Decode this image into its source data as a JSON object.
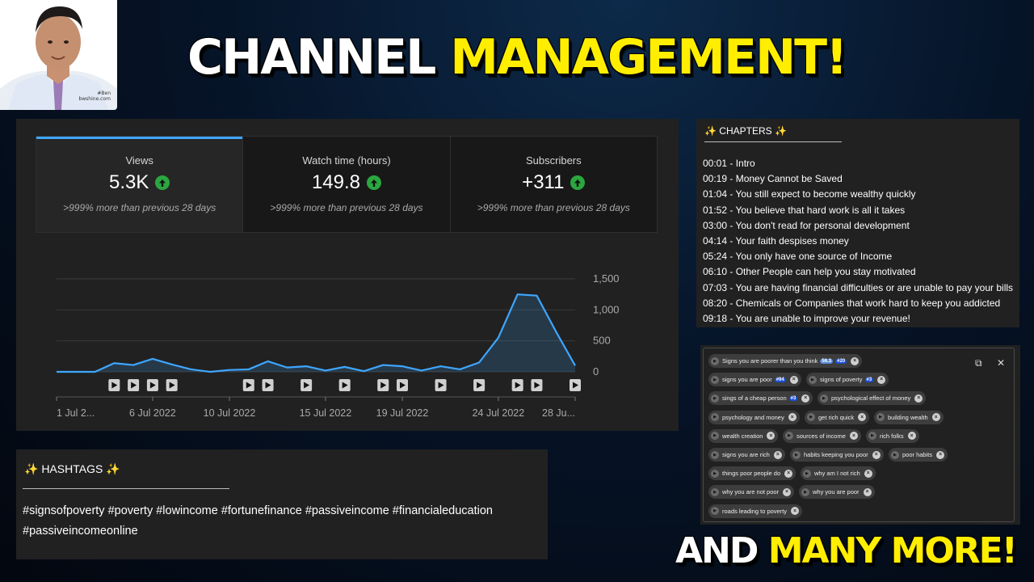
{
  "headline": {
    "part1": "CHANNEL",
    "part2": "MANAGEMENT!"
  },
  "footer": {
    "part1": "AND",
    "part2": "MANY MORE!"
  },
  "avatar": {
    "signature_line1": "#Ben",
    "signature_line2": "bwshine.com"
  },
  "analytics": {
    "metrics": [
      {
        "label": "Views",
        "value": "5.3K",
        "comparison": ">999% more than previous 28 days"
      },
      {
        "label": "Watch time (hours)",
        "value": "149.8",
        "comparison": ">999% more than previous 28 days"
      },
      {
        "label": "Subscribers",
        "value": "+311",
        "comparison": ">999% more than previous 28 days"
      }
    ],
    "colors": {
      "accent": "#3ea6ff",
      "positive": "#2ba640"
    }
  },
  "chart_data": {
    "type": "area",
    "x": [
      "1 Jul",
      "2 Jul",
      "3 Jul",
      "4 Jul",
      "5 Jul",
      "6 Jul",
      "7 Jul",
      "8 Jul",
      "9 Jul",
      "10 Jul",
      "11 Jul",
      "12 Jul",
      "13 Jul",
      "14 Jul",
      "15 Jul",
      "16 Jul",
      "17 Jul",
      "18 Jul",
      "19 Jul",
      "20 Jul",
      "21 Jul",
      "22 Jul",
      "23 Jul",
      "24 Jul",
      "25 Jul",
      "26 Jul",
      "27 Jul",
      "28 Jul"
    ],
    "values": [
      0,
      0,
      0,
      140,
      110,
      210,
      120,
      40,
      0,
      30,
      40,
      170,
      70,
      90,
      20,
      80,
      10,
      110,
      90,
      20,
      90,
      40,
      150,
      550,
      1250,
      1230,
      650,
      100
    ],
    "tick_labels": [
      "1 Jul 2...",
      "6 Jul 2022",
      "10 Jul 2022",
      "15 Jul 2022",
      "19 Jul 2022",
      "24 Jul 2022",
      "28 Ju..."
    ],
    "tick_indices": [
      0,
      5,
      9,
      14,
      18,
      23,
      27
    ],
    "y_ticks": [
      "0",
      "500",
      "1,000",
      "1,500"
    ],
    "ylim": [
      0,
      1500
    ],
    "grid": true,
    "video_markers": [
      3,
      4,
      5,
      6,
      10,
      11,
      13,
      15,
      17,
      18,
      20,
      22,
      24,
      25,
      27
    ],
    "color": "#3ea6ff"
  },
  "chapters": {
    "title": "✨ CHAPTERS ✨",
    "items": [
      "00:01 - Intro",
      "00:19 - Money Cannot be Saved",
      "01:04 - You still expect to become wealthy quickly",
      "01:52 - You believe that hard work is all it takes",
      "03:00 - You don't read for personal development",
      "04:14 - Your faith despises money",
      "05:24 - You only have one source of Income",
      "06:10 - Other People can help you stay motivated",
      "07:03 - You are having financial difficulties or are unable to pay your bills",
      "08:20 - Chemicals or Companies that work hard to keep you addicted",
      "09:18 - You are unable to improve your revenue!"
    ]
  },
  "tags": {
    "copy_icon": "copy-icon",
    "close_icon": "close-icon",
    "copy_glyph": "⧉",
    "close_glyph": "✕",
    "rows": [
      [
        {
          "text": "Signs you are poorer than you think",
          "badges": [
            "56.3",
            "#20"
          ]
        }
      ],
      [
        {
          "text": "signs you are poor",
          "badges": [
            "#94"
          ]
        },
        {
          "text": "signs of poverty",
          "badges": [
            "#3"
          ]
        }
      ],
      [
        {
          "text": "sings of a cheap person",
          "badges": [
            "#3"
          ]
        },
        {
          "text": "psychological effect of money",
          "badges": []
        }
      ],
      [
        {
          "text": "psychology and money",
          "badges": []
        },
        {
          "text": "get rich quick",
          "badges": []
        },
        {
          "text": "building wealth",
          "badges": []
        }
      ],
      [
        {
          "text": "wealth creation",
          "badges": []
        },
        {
          "text": "sources of income",
          "badges": []
        },
        {
          "text": "rich folks",
          "badges": []
        }
      ],
      [
        {
          "text": "signs you are rich",
          "badges": []
        },
        {
          "text": "habits keeping you poor",
          "badges": []
        },
        {
          "text": "poor habits",
          "badges": []
        }
      ],
      [
        {
          "text": "things poor people do",
          "badges": []
        },
        {
          "text": "why am I not rich",
          "badges": []
        }
      ],
      [
        {
          "text": "why you are not poor",
          "badges": []
        },
        {
          "text": "why you are poor",
          "badges": []
        }
      ],
      [
        {
          "text": "roads leading to poverty",
          "badges": []
        }
      ]
    ]
  },
  "hashtags": {
    "title": "✨ HASHTAGS ✨",
    "line1": "#signsofpoverty #poverty  #lowincome  #fortunefinance #passiveincome #financialeducation",
    "line2": "#passiveincomeonline"
  }
}
